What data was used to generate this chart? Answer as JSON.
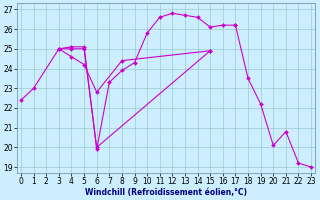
{
  "xlabel": "Windchill (Refroidissement éolien,°C)",
  "bg_color": "#cceeff",
  "grid_color": "#99cccc",
  "line_color": "#cc00cc",
  "x_ticks": [
    0,
    1,
    2,
    3,
    4,
    5,
    6,
    7,
    8,
    9,
    10,
    11,
    12,
    13,
    14,
    15,
    16,
    17,
    18,
    19,
    20,
    21,
    22,
    23
  ],
  "y_ticks": [
    19,
    20,
    21,
    22,
    23,
    24,
    25,
    26,
    27
  ],
  "xlim": [
    -0.3,
    23.3
  ],
  "ylim": [
    18.7,
    27.3
  ],
  "series1_x": [
    0,
    1,
    3,
    4,
    5,
    6,
    7,
    8,
    9,
    10,
    11,
    12,
    13,
    14,
    15,
    16,
    17
  ],
  "series1_y": [
    22.4,
    23.0,
    25.0,
    25.1,
    25.1,
    19.9,
    23.3,
    23.9,
    24.3,
    25.8,
    26.6,
    26.8,
    26.7,
    26.6,
    26.1,
    26.2,
    26.2
  ],
  "series2_x": [
    3,
    4,
    5,
    6,
    15
  ],
  "series2_y": [
    25.0,
    25.0,
    25.0,
    20.0,
    24.9
  ],
  "series3_x": [
    3,
    4,
    5,
    6,
    8,
    15
  ],
  "series3_y": [
    25.0,
    24.6,
    24.2,
    22.8,
    24.4,
    24.9
  ],
  "series4_x": [
    17,
    18,
    19,
    20,
    21,
    22,
    23
  ],
  "series4_y": [
    26.2,
    23.5,
    22.2,
    20.1,
    20.8,
    19.2,
    19.0
  ],
  "tick_fontsize": 5.5,
  "xlabel_fontsize": 5.5
}
